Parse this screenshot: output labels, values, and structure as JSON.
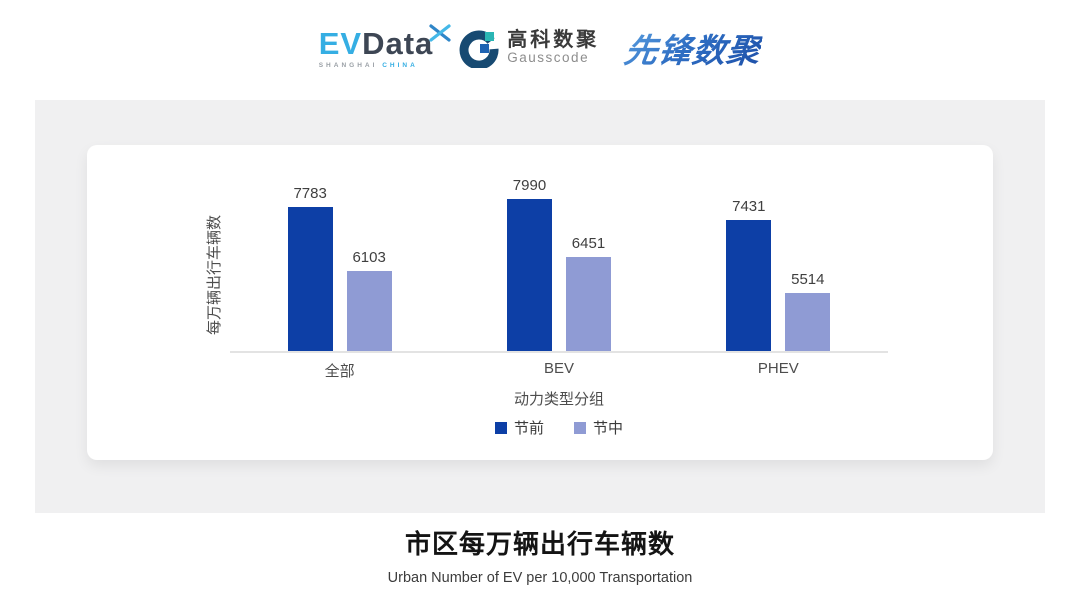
{
  "header": {
    "evdata_logo": {
      "ev": "EV",
      "data": "Data",
      "sub_left": "SHANGHAI",
      "sub_right": "CHINA"
    },
    "gausscode_logo": {
      "cn": "高科数聚",
      "en": "Gausscode"
    },
    "xianfeng_logo": {
      "text": "先锋数聚"
    }
  },
  "chart_data": {
    "type": "bar",
    "categories": [
      "全部",
      "BEV",
      "PHEV"
    ],
    "series": [
      {
        "name": "节前",
        "color": "#0d3fa6",
        "values": [
          7783,
          7990,
          7431
        ]
      },
      {
        "name": "节中",
        "color": "#8f9bd4",
        "values": [
          6103,
          6451,
          5514
        ]
      }
    ],
    "ylabel": "每万辆出行车辆数",
    "xlabel": "动力类型分组",
    "ylim": [
      4000,
      9400
    ],
    "grid": false,
    "legend_position": "bottom",
    "value_labels": true
  },
  "footer": {
    "title": "市区每万辆出行车辆数",
    "subtitle": "Urban Number of EV per 10,000 Transportation"
  }
}
